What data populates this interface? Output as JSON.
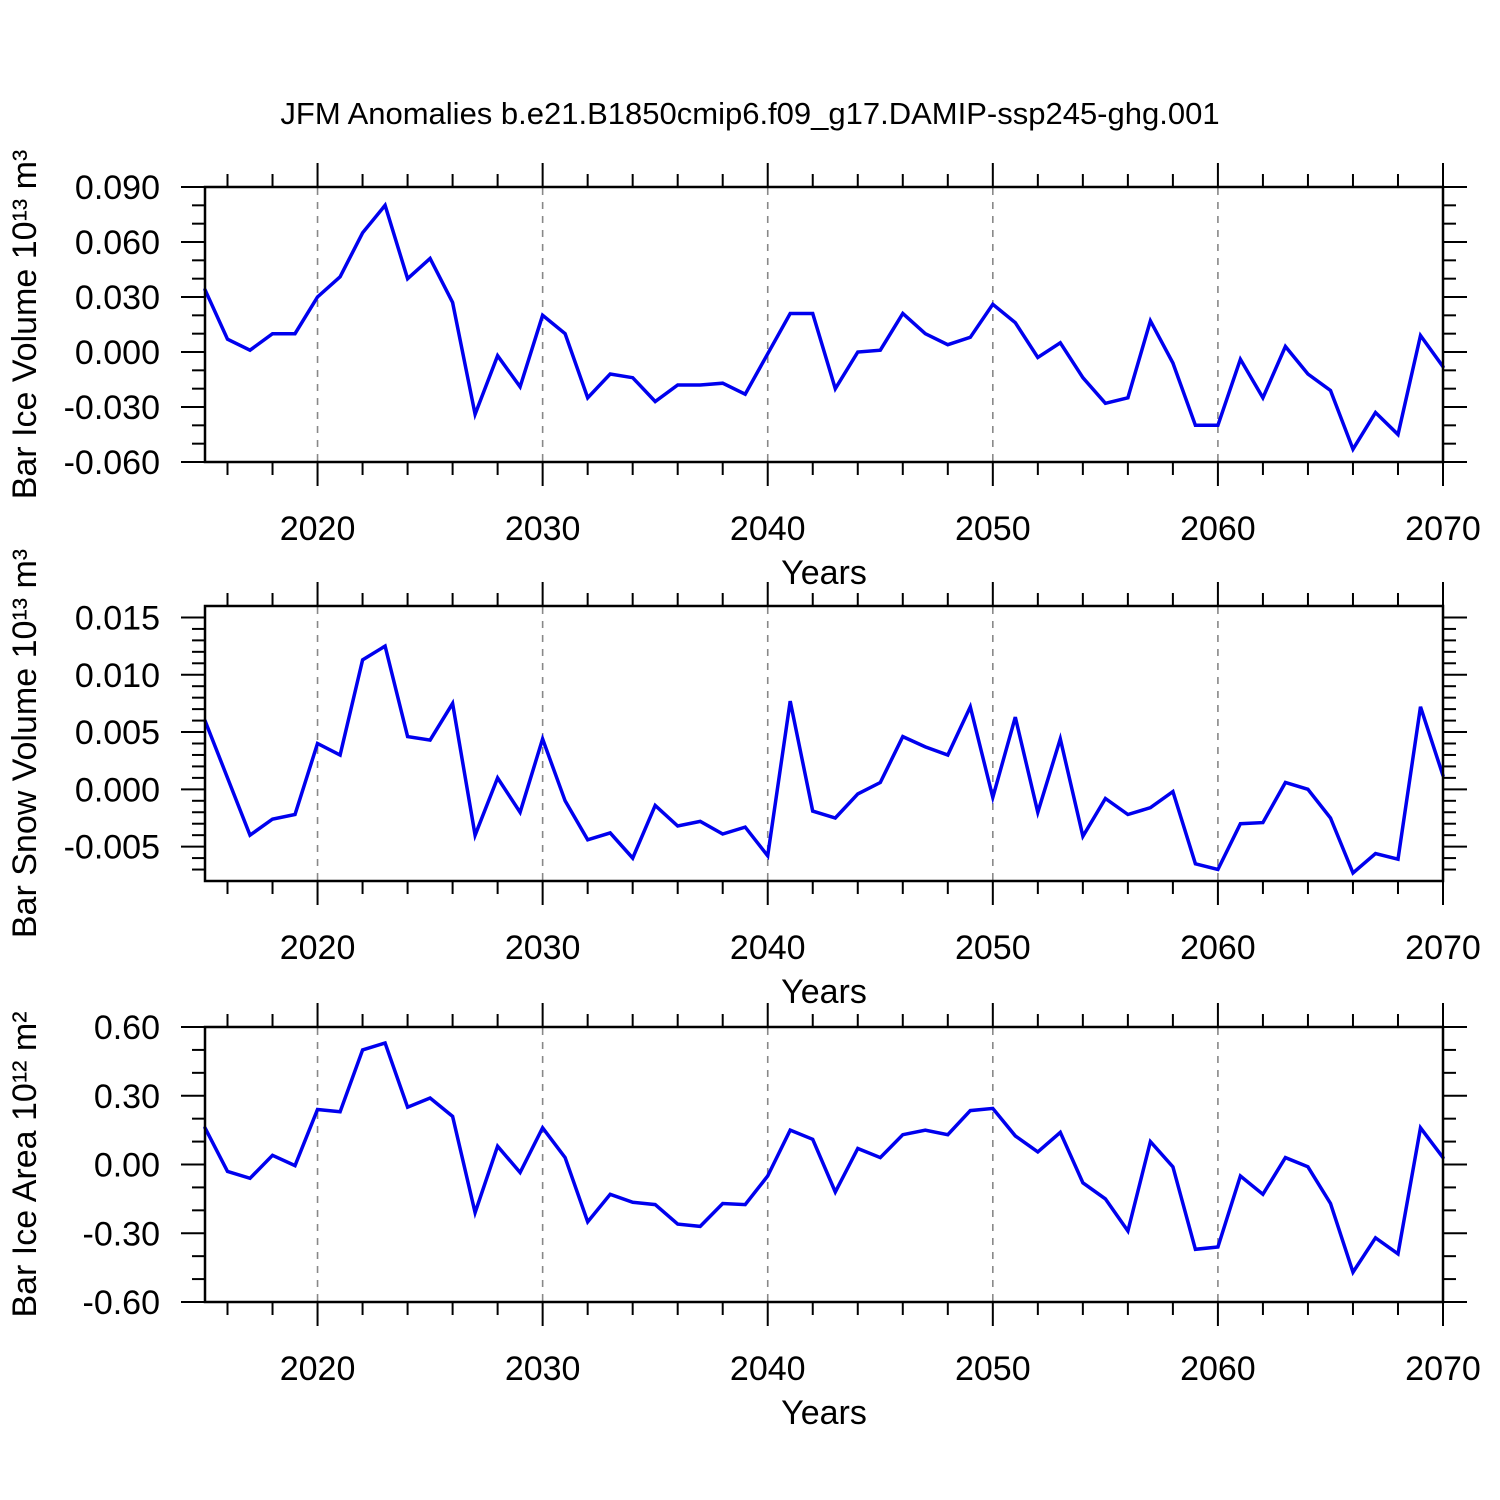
{
  "title": "JFM Anomalies b.e21.B1850cmip6.f09_g17.DAMIP-ssp245-ghg.001",
  "line_color": "#0000ee",
  "gridline_color": "#888888",
  "axis_color": "#000000",
  "gridline_years": [
    2020,
    2030,
    2040,
    2050,
    2060
  ],
  "x_axis": {
    "xlabel": "Years",
    "xlim": [
      2015,
      2070
    ],
    "major_tick_years": [
      2020,
      2030,
      2040,
      2050,
      2060,
      2070
    ],
    "tick_labels": [
      "2020",
      "2030",
      "2040",
      "2050",
      "2060",
      "2070"
    ],
    "minor_tick_step": 2
  },
  "chart_data": [
    {
      "type": "line",
      "name": "ice-volume",
      "ylabel": "Bar Ice Volume 10¹³ m³",
      "xlabel": "Years",
      "ylim": [
        -0.06,
        0.09
      ],
      "y_major_ticks": [
        0.09,
        0.06,
        0.03,
        0.0,
        -0.03,
        -0.06
      ],
      "y_tick_labels": [
        "0.090",
        "0.060",
        "0.030",
        "0.000",
        "-0.030",
        "-0.060"
      ],
      "y_major_step": 0.03,
      "y_minor_step": 0.01,
      "grid": "dashed vertical at decades",
      "legend": null,
      "x": [
        2015,
        2016,
        2017,
        2018,
        2019,
        2020,
        2021,
        2022,
        2023,
        2024,
        2025,
        2026,
        2027,
        2028,
        2029,
        2030,
        2031,
        2032,
        2033,
        2034,
        2035,
        2036,
        2037,
        2038,
        2039,
        2040,
        2041,
        2042,
        2043,
        2044,
        2045,
        2046,
        2047,
        2048,
        2049,
        2050,
        2051,
        2052,
        2053,
        2054,
        2055,
        2056,
        2057,
        2058,
        2059,
        2060,
        2061,
        2062,
        2063,
        2064,
        2065,
        2066,
        2067,
        2068,
        2069,
        2070
      ],
      "values": [
        0.034,
        0.007,
        0.001,
        0.01,
        0.01,
        0.03,
        0.041,
        0.065,
        0.08,
        0.04,
        0.051,
        0.027,
        -0.034,
        -0.002,
        -0.019,
        0.02,
        0.01,
        -0.025,
        -0.012,
        -0.014,
        -0.027,
        -0.018,
        -0.018,
        -0.017,
        -0.023,
        -0.001,
        0.021,
        0.021,
        -0.02,
        0.0,
        0.001,
        0.021,
        0.01,
        0.004,
        0.008,
        0.026,
        0.016,
        -0.003,
        0.005,
        -0.014,
        -0.028,
        -0.025,
        0.017,
        -0.006,
        -0.04,
        -0.04,
        -0.004,
        -0.025,
        0.003,
        -0.012,
        -0.021,
        -0.053,
        -0.033,
        -0.045,
        0.009,
        -0.008
      ]
    },
    {
      "type": "line",
      "name": "snow-volume",
      "ylabel": "Bar Snow Volume 10¹³ m³",
      "xlabel": "Years",
      "ylim": [
        -0.008,
        0.016
      ],
      "y_major_ticks": [
        0.015,
        0.01,
        0.005,
        0.0,
        -0.005
      ],
      "y_tick_labels": [
        "0.015",
        "0.010",
        "0.005",
        "0.000",
        "-0.005"
      ],
      "y_major_step": 0.005,
      "y_minor_step": 0.001,
      "grid": "dashed vertical at decades",
      "legend": null,
      "x": [
        2015,
        2016,
        2017,
        2018,
        2019,
        2020,
        2021,
        2022,
        2023,
        2024,
        2025,
        2026,
        2027,
        2028,
        2029,
        2030,
        2031,
        2032,
        2033,
        2034,
        2035,
        2036,
        2037,
        2038,
        2039,
        2040,
        2041,
        2042,
        2043,
        2044,
        2045,
        2046,
        2047,
        2048,
        2049,
        2050,
        2051,
        2052,
        2053,
        2054,
        2055,
        2056,
        2057,
        2058,
        2059,
        2060,
        2061,
        2062,
        2063,
        2064,
        2065,
        2066,
        2067,
        2068,
        2069,
        2070
      ],
      "values": [
        0.006,
        0.001,
        -0.004,
        -0.0026,
        -0.0022,
        0.004,
        0.003,
        0.0113,
        0.0125,
        0.0046,
        0.0043,
        0.0075,
        -0.004,
        0.001,
        -0.002,
        0.0044,
        -0.001,
        -0.0044,
        -0.0038,
        -0.006,
        -0.0014,
        -0.0032,
        -0.0028,
        -0.0039,
        -0.0033,
        -0.0058,
        0.0077,
        -0.0019,
        -0.0025,
        -0.0004,
        0.0006,
        0.0046,
        0.0037,
        0.003,
        0.0072,
        -0.0007,
        0.0063,
        -0.002,
        0.0044,
        -0.0041,
        -0.0008,
        -0.0022,
        -0.0016,
        -0.0002,
        -0.0065,
        -0.007,
        -0.003,
        -0.0029,
        0.0006,
        0.0,
        -0.0025,
        -0.0073,
        -0.0056,
        -0.0061,
        0.0072,
        0.0012
      ]
    },
    {
      "type": "line",
      "name": "ice-area",
      "ylabel": "Bar Ice Area 10¹² m²",
      "xlabel": "Years",
      "ylim": [
        -0.6,
        0.6
      ],
      "y_major_ticks": [
        0.6,
        0.3,
        0.0,
        -0.3,
        -0.6
      ],
      "y_tick_labels": [
        "0.60",
        "0.30",
        "0.00",
        "-0.30",
        "-0.60"
      ],
      "y_major_step": 0.3,
      "y_minor_step": 0.1,
      "grid": "dashed vertical at decades",
      "legend": null,
      "x": [
        2015,
        2016,
        2017,
        2018,
        2019,
        2020,
        2021,
        2022,
        2023,
        2024,
        2025,
        2026,
        2027,
        2028,
        2029,
        2030,
        2031,
        2032,
        2033,
        2034,
        2035,
        2036,
        2037,
        2038,
        2039,
        2040,
        2041,
        2042,
        2043,
        2044,
        2045,
        2046,
        2047,
        2048,
        2049,
        2050,
        2051,
        2052,
        2053,
        2054,
        2055,
        2056,
        2057,
        2058,
        2059,
        2060,
        2061,
        2062,
        2063,
        2064,
        2065,
        2066,
        2067,
        2068,
        2069,
        2070
      ],
      "values": [
        0.16,
        -0.03,
        -0.06,
        0.04,
        -0.005,
        0.24,
        0.23,
        0.5,
        0.53,
        0.25,
        0.29,
        0.21,
        -0.21,
        0.08,
        -0.035,
        0.16,
        0.03,
        -0.25,
        -0.13,
        -0.165,
        -0.175,
        -0.26,
        -0.27,
        -0.17,
        -0.175,
        -0.05,
        0.15,
        0.11,
        -0.12,
        0.07,
        0.03,
        0.13,
        0.15,
        0.13,
        0.235,
        0.245,
        0.125,
        0.055,
        0.14,
        -0.08,
        -0.15,
        -0.29,
        0.1,
        -0.01,
        -0.37,
        -0.36,
        -0.05,
        -0.13,
        0.03,
        -0.01,
        -0.17,
        -0.47,
        -0.32,
        -0.39,
        0.16,
        0.03
      ]
    }
  ]
}
